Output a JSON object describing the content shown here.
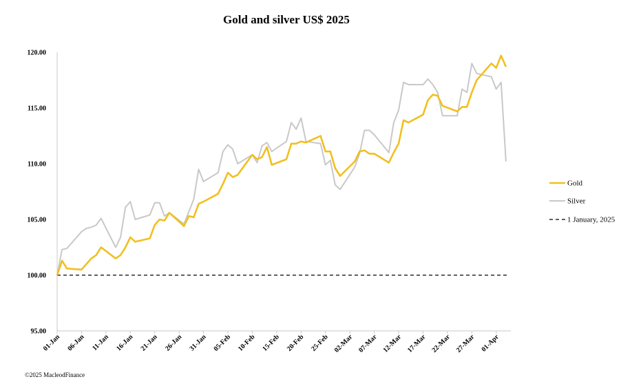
{
  "chart_data": {
    "type": "line",
    "title": "Gold and silver  US$ 2025",
    "xlabel": "",
    "ylabel": "",
    "ylim": [
      95,
      120
    ],
    "yticks": [
      "95.00",
      "100.00",
      "105.00",
      "110.00",
      "115.00",
      "120.00"
    ],
    "xtick_labels": [
      "01-Jan",
      "06-Jan",
      "11-Jan",
      "16-Jan",
      "21-Jan",
      "26-Jan",
      "31-Jan",
      "05-Feb",
      "10-Feb",
      "15-Feb",
      "20-Feb",
      "25-Feb",
      "02-Mar",
      "07-Mar",
      "12-Mar",
      "17-Mar",
      "22-Mar",
      "27-Mar",
      "01-Apr"
    ],
    "x_range": [
      "2025-01-01",
      "2025-04-04"
    ],
    "legend_position": "right",
    "grid": false,
    "series": [
      {
        "name": "Gold",
        "color": "#f2bf1f",
        "points": [
          [
            "2025-01-01",
            100.0
          ],
          [
            "2025-01-02",
            101.3
          ],
          [
            "2025-01-03",
            100.6
          ],
          [
            "2025-01-06",
            100.5
          ],
          [
            "2025-01-07",
            101.0
          ],
          [
            "2025-01-08",
            101.5
          ],
          [
            "2025-01-09",
            101.8
          ],
          [
            "2025-01-10",
            102.5
          ],
          [
            "2025-01-13",
            101.5
          ],
          [
            "2025-01-14",
            101.8
          ],
          [
            "2025-01-15",
            102.5
          ],
          [
            "2025-01-16",
            103.4
          ],
          [
            "2025-01-17",
            103.0
          ],
          [
            "2025-01-20",
            103.3
          ],
          [
            "2025-01-21",
            104.5
          ],
          [
            "2025-01-22",
            105.0
          ],
          [
            "2025-01-23",
            104.9
          ],
          [
            "2025-01-24",
            105.6
          ],
          [
            "2025-01-27",
            104.4
          ],
          [
            "2025-01-28",
            105.3
          ],
          [
            "2025-01-29",
            105.2
          ],
          [
            "2025-01-30",
            106.4
          ],
          [
            "2025-01-31",
            106.6
          ],
          [
            "2025-02-03",
            107.3
          ],
          [
            "2025-02-04",
            108.2
          ],
          [
            "2025-02-05",
            109.2
          ],
          [
            "2025-02-06",
            108.8
          ],
          [
            "2025-02-07",
            109.0
          ],
          [
            "2025-02-10",
            110.8
          ],
          [
            "2025-02-11",
            110.4
          ],
          [
            "2025-02-12",
            110.6
          ],
          [
            "2025-02-13",
            111.5
          ],
          [
            "2025-02-14",
            109.9
          ],
          [
            "2025-02-17",
            110.4
          ],
          [
            "2025-02-18",
            111.8
          ],
          [
            "2025-02-19",
            111.8
          ],
          [
            "2025-02-20",
            112.0
          ],
          [
            "2025-02-21",
            111.9
          ],
          [
            "2025-02-24",
            112.5
          ],
          [
            "2025-02-25",
            111.1
          ],
          [
            "2025-02-26",
            111.1
          ],
          [
            "2025-02-27",
            109.6
          ],
          [
            "2025-02-28",
            108.9
          ],
          [
            "2025-03-03",
            110.2
          ],
          [
            "2025-03-04",
            111.1
          ],
          [
            "2025-03-05",
            111.2
          ],
          [
            "2025-03-06",
            110.9
          ],
          [
            "2025-03-07",
            110.9
          ],
          [
            "2025-03-10",
            110.1
          ],
          [
            "2025-03-11",
            111.0
          ],
          [
            "2025-03-12",
            111.8
          ],
          [
            "2025-03-13",
            113.9
          ],
          [
            "2025-03-14",
            113.7
          ],
          [
            "2025-03-17",
            114.4
          ],
          [
            "2025-03-18",
            115.7
          ],
          [
            "2025-03-19",
            116.2
          ],
          [
            "2025-03-20",
            116.1
          ],
          [
            "2025-03-21",
            115.2
          ],
          [
            "2025-03-24",
            114.7
          ],
          [
            "2025-03-25",
            115.1
          ],
          [
            "2025-03-26",
            115.1
          ],
          [
            "2025-03-27",
            116.4
          ],
          [
            "2025-03-28",
            117.5
          ],
          [
            "2025-03-31",
            119.0
          ],
          [
            "2025-04-01",
            118.6
          ],
          [
            "2025-04-02",
            119.7
          ],
          [
            "2025-04-03",
            118.7
          ]
        ]
      },
      {
        "name": "Silver",
        "color": "#c8c8c8",
        "points": [
          [
            "2025-01-01",
            100.0
          ],
          [
            "2025-01-02",
            102.3
          ],
          [
            "2025-01-03",
            102.4
          ],
          [
            "2025-01-06",
            103.9
          ],
          [
            "2025-01-07",
            104.2
          ],
          [
            "2025-01-08",
            104.3
          ],
          [
            "2025-01-09",
            104.5
          ],
          [
            "2025-01-10",
            105.1
          ],
          [
            "2025-01-13",
            102.5
          ],
          [
            "2025-01-14",
            103.4
          ],
          [
            "2025-01-15",
            106.1
          ],
          [
            "2025-01-16",
            106.6
          ],
          [
            "2025-01-17",
            105.0
          ],
          [
            "2025-01-20",
            105.4
          ],
          [
            "2025-01-21",
            106.5
          ],
          [
            "2025-01-22",
            106.5
          ],
          [
            "2025-01-23",
            105.3
          ],
          [
            "2025-01-24",
            105.6
          ],
          [
            "2025-01-27",
            104.6
          ],
          [
            "2025-01-28",
            105.7
          ],
          [
            "2025-01-29",
            106.8
          ],
          [
            "2025-01-30",
            109.5
          ],
          [
            "2025-01-31",
            108.4
          ],
          [
            "2025-02-03",
            109.2
          ],
          [
            "2025-02-04",
            111.1
          ],
          [
            "2025-02-05",
            111.7
          ],
          [
            "2025-02-06",
            111.3
          ],
          [
            "2025-02-07",
            110.0
          ],
          [
            "2025-02-10",
            110.8
          ],
          [
            "2025-02-11",
            110.1
          ],
          [
            "2025-02-12",
            111.6
          ],
          [
            "2025-02-13",
            111.9
          ],
          [
            "2025-02-14",
            111.1
          ],
          [
            "2025-02-17",
            112.0
          ],
          [
            "2025-02-18",
            113.7
          ],
          [
            "2025-02-19",
            113.1
          ],
          [
            "2025-02-20",
            114.1
          ],
          [
            "2025-02-21",
            112.0
          ],
          [
            "2025-02-24",
            111.8
          ],
          [
            "2025-02-25",
            109.9
          ],
          [
            "2025-02-26",
            110.3
          ],
          [
            "2025-02-27",
            108.1
          ],
          [
            "2025-02-28",
            107.7
          ],
          [
            "2025-03-03",
            109.7
          ],
          [
            "2025-03-04",
            110.9
          ],
          [
            "2025-03-05",
            113.0
          ],
          [
            "2025-03-06",
            113.0
          ],
          [
            "2025-03-07",
            112.6
          ],
          [
            "2025-03-10",
            111.0
          ],
          [
            "2025-03-11",
            113.7
          ],
          [
            "2025-03-12",
            114.8
          ],
          [
            "2025-03-13",
            117.3
          ],
          [
            "2025-03-14",
            117.1
          ],
          [
            "2025-03-17",
            117.1
          ],
          [
            "2025-03-18",
            117.6
          ],
          [
            "2025-03-19",
            117.1
          ],
          [
            "2025-03-20",
            116.4
          ],
          [
            "2025-03-21",
            114.3
          ],
          [
            "2025-03-24",
            114.3
          ],
          [
            "2025-03-25",
            116.7
          ],
          [
            "2025-03-26",
            116.4
          ],
          [
            "2025-03-27",
            119.0
          ],
          [
            "2025-03-28",
            118.1
          ],
          [
            "2025-03-31",
            117.8
          ],
          [
            "2025-04-01",
            116.7
          ],
          [
            "2025-04-02",
            117.3
          ],
          [
            "2025-04-03",
            110.2
          ]
        ]
      }
    ],
    "reference_line": {
      "name": "1 January, 2025",
      "value": 100.0,
      "style": "dashed",
      "color": "#000000"
    }
  },
  "footer": {
    "credit": "©2025 MacleodFinance"
  }
}
